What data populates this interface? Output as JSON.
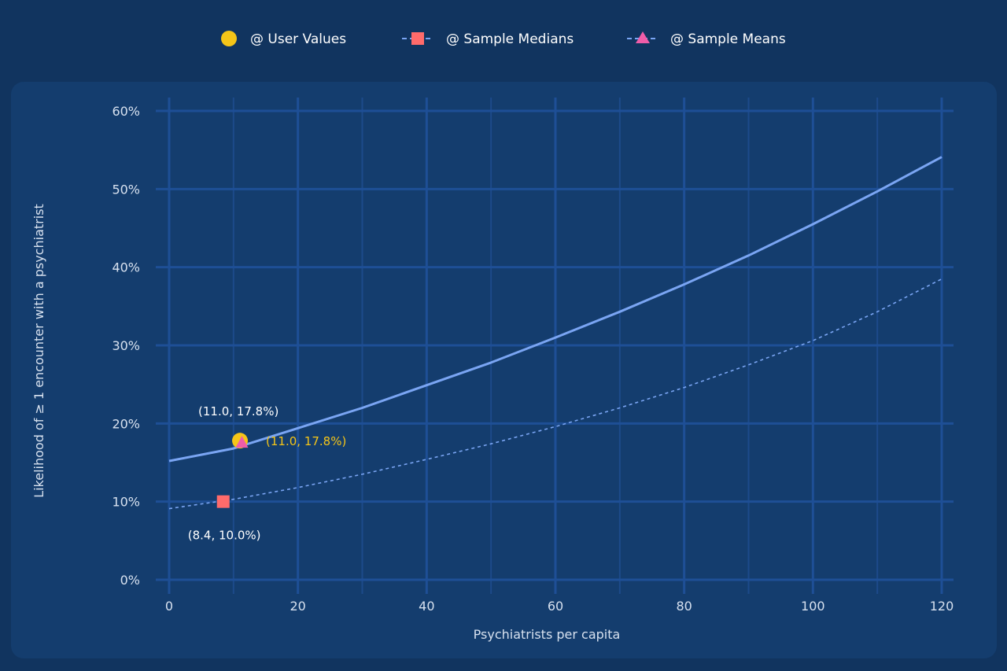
{
  "colors": {
    "page_bg": "#11345f",
    "panel_bg": "#143d6e",
    "grid_major": "#1e4f96",
    "grid_minor": "#1d4a8a",
    "curve": "#7aa5f3",
    "user_marker": "#f5c518",
    "median_marker": "#ff6b6b",
    "mean_marker": "#ef5da8",
    "annotation_white": "#ffffff",
    "annotation_yellow": "#f5c518"
  },
  "legend": {
    "items": [
      {
        "label": "@ User Values",
        "icon": "circle-marker-icon",
        "color": "#f5c518"
      },
      {
        "label": "@ Sample Medians",
        "icon": "square-marker-dashed-icon",
        "color": "#ff6b6b"
      },
      {
        "label": "@ Sample Means",
        "icon": "triangle-marker-dashed-icon",
        "color": "#ef5da8"
      }
    ]
  },
  "chart_data": {
    "type": "line",
    "title": "",
    "xlabel": "Psychiatrists per capita",
    "ylabel": "Likelihood of ≥ 1 encounter with a psychiatrist",
    "xlim": [
      0,
      120
    ],
    "ylim": [
      0,
      0.6
    ],
    "x_ticks": [
      0,
      20,
      40,
      60,
      80,
      100,
      120
    ],
    "x_tick_labels": [
      "0",
      "20",
      "40",
      "60",
      "80",
      "100",
      "120"
    ],
    "y_ticks": [
      0,
      0.1,
      0.2,
      0.3,
      0.4,
      0.5,
      0.6
    ],
    "y_tick_labels": [
      "0%",
      "10%",
      "20%",
      "30%",
      "40%",
      "50%",
      "60%"
    ],
    "grid": true,
    "legend_position": "top-center",
    "series": [
      {
        "style": "solid",
        "x": [
          0,
          10,
          20,
          30,
          40,
          50,
          60,
          70,
          80,
          90,
          100,
          110,
          120
        ],
        "y": [
          0.152,
          0.168,
          0.194,
          0.22,
          0.249,
          0.278,
          0.31,
          0.343,
          0.378,
          0.415,
          0.455,
          0.497,
          0.541
        ]
      },
      {
        "style": "dashed",
        "x": [
          0,
          10,
          20,
          30,
          40,
          50,
          60,
          70,
          80,
          90,
          100,
          110,
          120
        ],
        "y": [
          0.091,
          0.103,
          0.118,
          0.135,
          0.154,
          0.174,
          0.196,
          0.22,
          0.246,
          0.275,
          0.306,
          0.343,
          0.385
        ]
      }
    ],
    "points": [
      {
        "name": "user-value-point",
        "marker": "circle",
        "x": 11.0,
        "y": 0.178,
        "color": "#f5c518"
      },
      {
        "name": "sample-mean-point",
        "marker": "triangle",
        "x": 11.3,
        "y": 0.175,
        "color": "#ef5da8"
      },
      {
        "name": "sample-median-point",
        "marker": "square",
        "x": 8.4,
        "y": 0.1,
        "color": "#ff6b6b"
      }
    ],
    "annotations": [
      {
        "text": "(11.0, 17.8%)",
        "color": "#ffffff",
        "placement": "above-left"
      },
      {
        "text": "(11.0, 17.8%)",
        "color": "#f5c518",
        "placement": "right"
      },
      {
        "text": "(8.4, 10.0%)",
        "color": "#ffffff",
        "placement": "below"
      }
    ]
  }
}
